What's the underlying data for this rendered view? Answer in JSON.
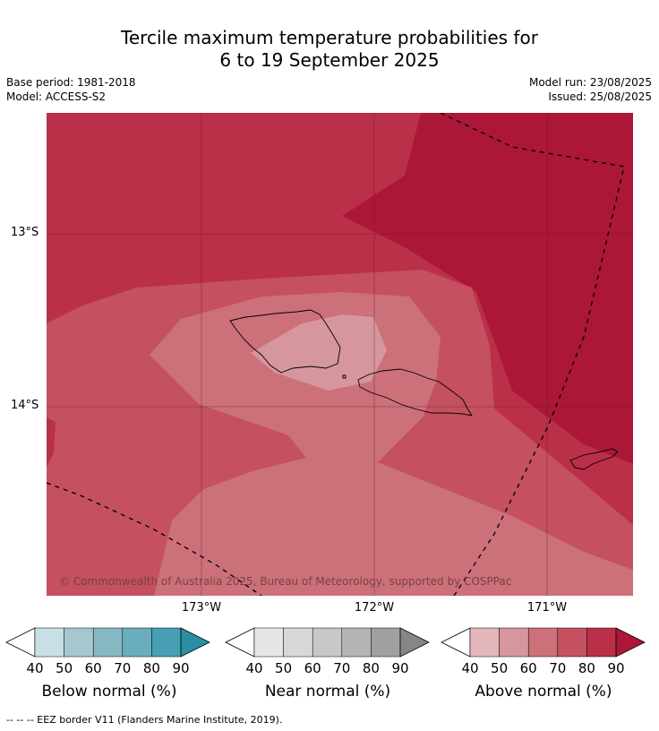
{
  "title_line1": "Tercile maximum temperature probabilities for",
  "title_line2": "6 to 19 September 2025",
  "base_period": "Base period: 1981-2018",
  "model": "Model: ACCESS-S2",
  "model_run": "Model run: 23/08/2025",
  "issued": "Issued: 25/08/2025",
  "lat_labels": [
    "13°S",
    "14°S"
  ],
  "lon_labels": [
    "173°W",
    "172°W",
    "171°W"
  ],
  "credit": "© Commonwealth of Australia 2025, Bureau of Meteorology, supported by COSPPac",
  "colorbars": [
    {
      "title": "Below normal (%)",
      "ticks": [
        "40",
        "50",
        "60",
        "70",
        "80",
        "90"
      ],
      "colors": [
        "#ffffff",
        "#c7e0e6",
        "#a6c7cd",
        "#88b7c4",
        "#6aadbc",
        "#469fb3",
        "#2b8ea3"
      ]
    },
    {
      "title": "Near normal (%)",
      "ticks": [
        "40",
        "50",
        "60",
        "70",
        "80",
        "90"
      ],
      "colors": [
        "#ffffff",
        "#e6e6e6",
        "#d8d8d8",
        "#c8c8c8",
        "#b4b4b4",
        "#a0a0a0",
        "#868686"
      ]
    },
    {
      "title": "Above normal (%)",
      "ticks": [
        "40",
        "50",
        "60",
        "70",
        "80",
        "90"
      ],
      "colors": [
        "#ffffff",
        "#e2b6bb",
        "#d6969d",
        "#cc7079",
        "#c45060",
        "#ba3048",
        "#ac1738"
      ]
    }
  ],
  "footnote": "--  --  -- EEZ border V11 (Flanders Marine Institute, 2019)."
}
